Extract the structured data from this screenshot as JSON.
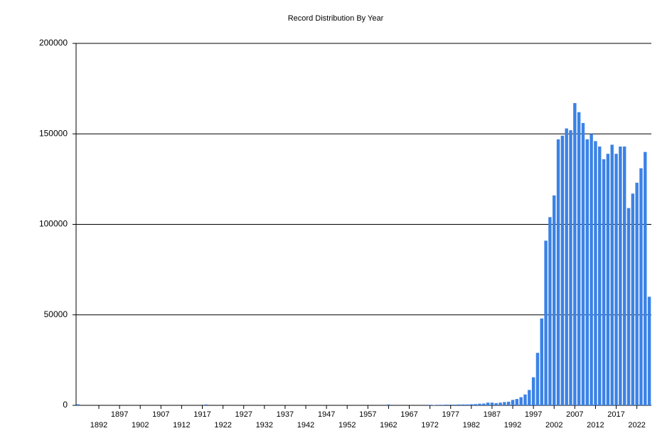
{
  "chart_data": {
    "type": "bar",
    "title": "Record Distribution By Year",
    "categories": [
      null,
      null,
      null,
      null,
      null,
      "1892",
      null,
      null,
      null,
      null,
      "1897",
      null,
      null,
      null,
      null,
      "1902",
      null,
      null,
      null,
      null,
      "1907",
      null,
      null,
      null,
      null,
      "1912",
      null,
      null,
      null,
      null,
      "1917",
      null,
      null,
      null,
      null,
      "1922",
      null,
      null,
      null,
      null,
      "1927",
      null,
      null,
      null,
      null,
      "1932",
      null,
      null,
      null,
      null,
      "1937",
      null,
      null,
      null,
      null,
      "1942",
      null,
      null,
      null,
      null,
      "1947",
      null,
      null,
      null,
      null,
      "1952",
      null,
      null,
      null,
      null,
      "1957",
      null,
      null,
      null,
      null,
      "1962",
      null,
      null,
      null,
      null,
      "1967",
      null,
      null,
      null,
      null,
      "1972",
      null,
      null,
      null,
      null,
      "1977",
      null,
      null,
      null,
      null,
      "1982",
      null,
      null,
      null,
      null,
      "1987",
      null,
      null,
      null,
      null,
      "1992",
      null,
      null,
      null,
      null,
      "1997",
      null,
      null,
      null,
      null,
      "2002",
      null,
      null,
      null,
      null,
      "2007",
      null,
      null,
      null,
      null,
      "2012",
      null,
      null,
      null,
      null,
      "2017",
      null,
      null,
      null,
      null,
      "2022",
      null,
      null,
      null
    ],
    "values": [
      600,
      0,
      0,
      0,
      0,
      0,
      0,
      0,
      0,
      0,
      0,
      0,
      0,
      0,
      0,
      0,
      0,
      0,
      0,
      0,
      0,
      0,
      0,
      0,
      0,
      0,
      0,
      0,
      0,
      0,
      0,
      500,
      0,
      0,
      0,
      0,
      0,
      0,
      0,
      0,
      0,
      0,
      0,
      0,
      0,
      0,
      0,
      0,
      0,
      0,
      0,
      0,
      0,
      0,
      0,
      0,
      0,
      0,
      0,
      0,
      0,
      0,
      0,
      0,
      0,
      0,
      0,
      0,
      0,
      0,
      0,
      0,
      0,
      0,
      0,
      500,
      0,
      0,
      0,
      0,
      0,
      0,
      0,
      0,
      0,
      300,
      200,
      300,
      300,
      400,
      400,
      400,
      500,
      500,
      500,
      600,
      700,
      900,
      1000,
      1500,
      1500,
      1200,
      1500,
      1800,
      2000,
      3000,
      3500,
      4500,
      6000,
      8500,
      15500,
      29000,
      48000,
      91000,
      104000,
      116000,
      147000,
      149000,
      153000,
      152000,
      167000,
      162000,
      156000,
      147000,
      150000,
      146000,
      143000,
      136000,
      139000,
      144000,
      139000,
      143000,
      143000,
      109000,
      117000,
      123000,
      131000,
      140000,
      60000
    ],
    "color": "#3b82e6",
    "ylim": [
      0,
      200000
    ],
    "yticks": [
      0,
      50000,
      100000,
      150000,
      200000
    ],
    "grid": true
  }
}
